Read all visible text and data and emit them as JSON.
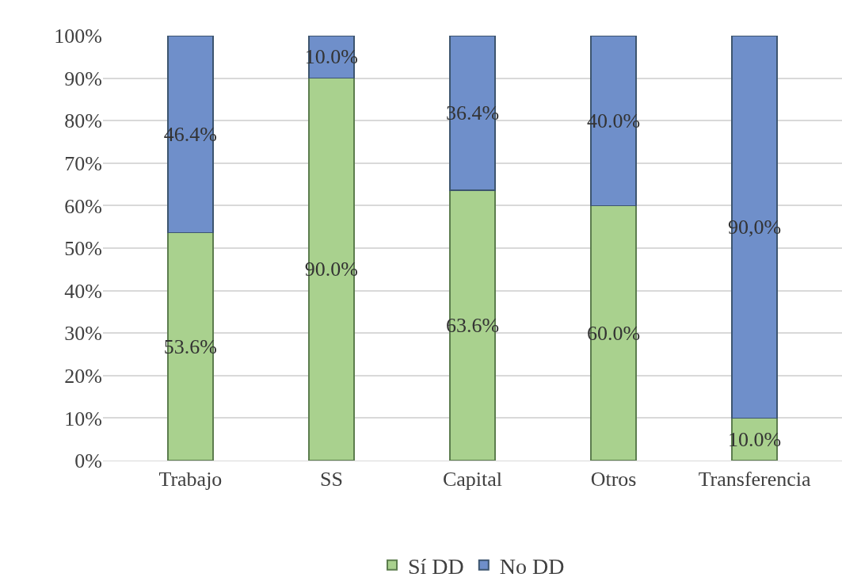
{
  "chart_data": {
    "type": "bar",
    "stacked": true,
    "categories": [
      "Trabajo",
      "SS",
      "Capital",
      "Otros",
      "Transferencia"
    ],
    "series": [
      {
        "name": "Sí DD",
        "color": "#a9d18e",
        "values": [
          53.6,
          90.0,
          63.6,
          60.0,
          10.0
        ],
        "value_labels": [
          "53.6%",
          "90.0%",
          "63.6%",
          "60.0%",
          "10.0%"
        ]
      },
      {
        "name": "No DD",
        "color": "#6f8fca",
        "values": [
          46.4,
          10.0,
          36.4,
          40.0,
          90.0
        ],
        "value_labels": [
          "46.4%",
          "10.0%",
          "36.4%",
          "40.0%",
          "90,0%"
        ]
      }
    ],
    "ylim": [
      0,
      100
    ],
    "yticks": [
      {
        "value": 0,
        "label": "0%"
      },
      {
        "value": 10,
        "label": "10%"
      },
      {
        "value": 20,
        "label": "20%"
      },
      {
        "value": 30,
        "label": "30%"
      },
      {
        "value": 40,
        "label": "40%"
      },
      {
        "value": 50,
        "label": "50%"
      },
      {
        "value": 60,
        "label": "60%"
      },
      {
        "value": 70,
        "label": "70%"
      },
      {
        "value": 80,
        "label": "80%"
      },
      {
        "value": 90,
        "label": "90%"
      },
      {
        "value": 100,
        "label": "100%"
      }
    ],
    "grid": "y",
    "legend": "bottom"
  }
}
